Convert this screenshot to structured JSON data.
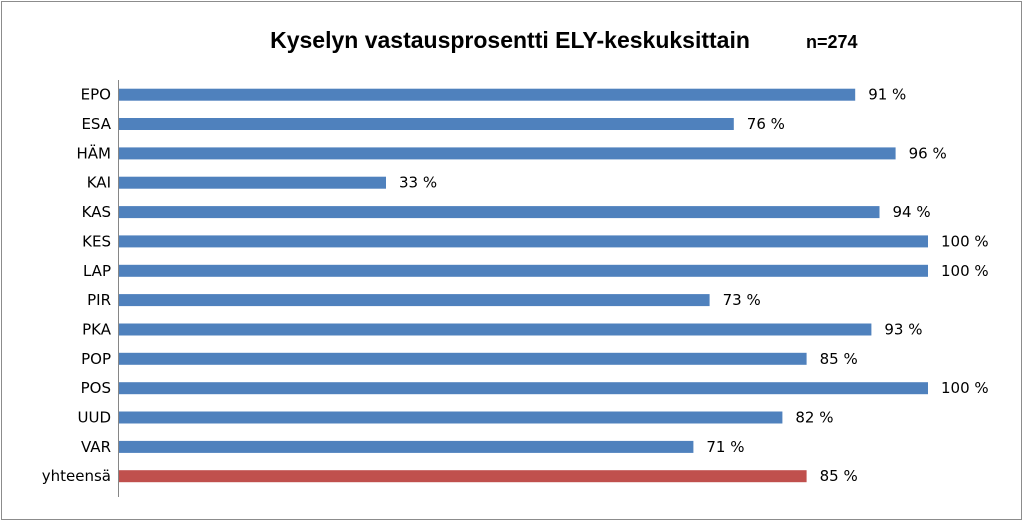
{
  "chart_data": {
    "type": "bar",
    "orientation": "horizontal",
    "title": "Kyselyn vastausprosentti ELY-keskuksittain",
    "subtitle": "n=274",
    "categories": [
      "EPO",
      "ESA",
      "HÄM",
      "KAI",
      "KAS",
      "KES",
      "LAP",
      "PIR",
      "PKA",
      "POP",
      "POS",
      "UUD",
      "VAR",
      "yhteensä"
    ],
    "values": [
      91,
      76,
      96,
      33,
      94,
      100,
      100,
      73,
      93,
      85,
      100,
      82,
      71,
      85
    ],
    "value_labels": [
      "91 %",
      "76 %",
      "96 %",
      "33 %",
      "94 %",
      "100 %",
      "100 %",
      "73 %",
      "93 %",
      "85 %",
      "100 %",
      "82 %",
      "71 %",
      "85 %"
    ],
    "xlim": [
      0,
      100
    ],
    "grid": false,
    "legend": "none",
    "colors": {
      "bar": "#4f81bd",
      "total_bar": "#c0504d"
    }
  }
}
